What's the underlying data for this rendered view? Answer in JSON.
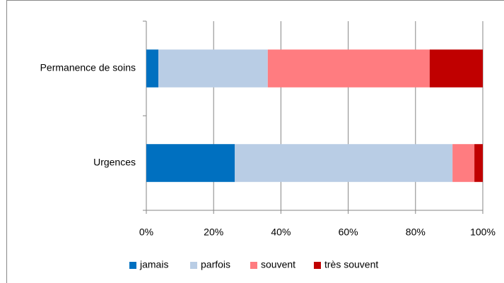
{
  "chart_data": {
    "type": "stacked-bar-horizontal",
    "categories": [
      "Permanence de soins",
      "Urgences"
    ],
    "series": [
      {
        "name": "jamais",
        "color": "#0070c0",
        "values": [
          3.6,
          26.3
        ]
      },
      {
        "name": "parfois",
        "color": "#b9cde5",
        "values": [
          32.5,
          64.7
        ]
      },
      {
        "name": "souvent",
        "color": "#ff7c80",
        "values": [
          48.1,
          6.5
        ]
      },
      {
        "name": "très souvent",
        "color": "#c00000",
        "values": [
          15.8,
          2.5
        ]
      }
    ],
    "xlim": [
      0,
      100
    ],
    "xticks": [
      {
        "value": 0,
        "label": "0%"
      },
      {
        "value": 20,
        "label": "20%"
      },
      {
        "value": 40,
        "label": "40%"
      },
      {
        "value": 60,
        "label": "60%"
      },
      {
        "value": 80,
        "label": "80%"
      },
      {
        "value": 100,
        "label": "100%"
      }
    ],
    "grid": true,
    "legend": "bottom"
  }
}
